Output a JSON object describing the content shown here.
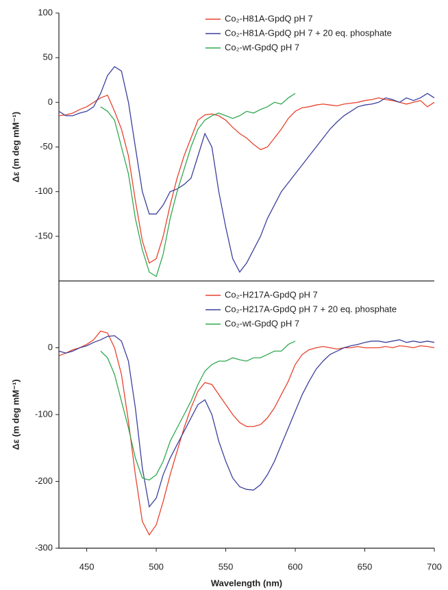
{
  "chart_data": [
    {
      "type": "line",
      "ylabel": "Δε (m deg mM⁻¹)",
      "legend": "top-right",
      "x": [
        430,
        435,
        440,
        445,
        450,
        455,
        460,
        465,
        470,
        475,
        480,
        485,
        490,
        495,
        500,
        505,
        510,
        515,
        520,
        525,
        530,
        535,
        540,
        545,
        550,
        555,
        560,
        565,
        570,
        575,
        580,
        585,
        590,
        595,
        600,
        605,
        610,
        615,
        620,
        625,
        630,
        635,
        640,
        645,
        650,
        655,
        660,
        665,
        670,
        675,
        680,
        685,
        690,
        695,
        700
      ],
      "xlim": [
        430,
        700
      ],
      "ylim": [
        -200,
        100
      ],
      "yticks": [
        -150,
        -100,
        -50,
        0,
        50,
        100
      ],
      "series": [
        {
          "name": "Co₂-H81A-GpdQ pH 7",
          "color": "#e8412c",
          "values": [
            -15,
            -14,
            -12,
            -8,
            -5,
            0,
            5,
            8,
            -10,
            -30,
            -60,
            -110,
            -155,
            -180,
            -175,
            -150,
            -115,
            -85,
            -60,
            -40,
            -20,
            -14,
            -13,
            -15,
            -20,
            -28,
            -35,
            -40,
            -47,
            -53,
            -50,
            -40,
            -30,
            -18,
            -10,
            -6,
            -5,
            -3,
            -2,
            -3,
            -4,
            -2,
            -1,
            0,
            2,
            3,
            5,
            3,
            2,
            0,
            -2,
            0,
            2,
            -5,
            0
          ]
        },
        {
          "name": "Co₂-H81A-GpdQ pH 7 + 20 eq. phosphate",
          "color": "#3b3f9c",
          "values": [
            -10,
            -15,
            -15,
            -12,
            -10,
            -5,
            10,
            30,
            40,
            35,
            0,
            -50,
            -100,
            -125,
            -125,
            -115,
            -100,
            -97,
            -92,
            -85,
            -60,
            -35,
            -50,
            -100,
            -140,
            -175,
            -190,
            -180,
            -165,
            -150,
            -130,
            -115,
            -100,
            -90,
            -80,
            -70,
            -60,
            -50,
            -40,
            -30,
            -22,
            -15,
            -10,
            -5,
            -3,
            -2,
            0,
            5,
            3,
            0,
            5,
            2,
            5,
            10,
            5
          ]
        },
        {
          "name": "Co₂-wt-GpdQ pH 7",
          "color": "#2fa84f",
          "values": [
            null,
            null,
            null,
            null,
            null,
            null,
            -5,
            -10,
            -20,
            -50,
            -80,
            -130,
            -165,
            -190,
            -195,
            -170,
            -130,
            -100,
            -75,
            -50,
            -30,
            -20,
            -15,
            -12,
            -15,
            -18,
            -15,
            -10,
            -12,
            -8,
            -5,
            0,
            -2,
            5,
            10,
            null,
            null,
            null,
            null,
            null,
            null,
            null,
            null,
            null,
            null,
            null,
            null,
            null,
            null,
            null,
            null,
            null,
            null,
            null,
            null
          ]
        }
      ]
    },
    {
      "type": "line",
      "xlabel": "Wavelength (nm)",
      "ylabel": "Δε (m deg mM⁻¹)",
      "legend": "top-right",
      "x": [
        430,
        435,
        440,
        445,
        450,
        455,
        460,
        465,
        470,
        475,
        480,
        485,
        490,
        495,
        500,
        505,
        510,
        515,
        520,
        525,
        530,
        535,
        540,
        545,
        550,
        555,
        560,
        565,
        570,
        575,
        580,
        585,
        590,
        595,
        600,
        605,
        610,
        615,
        620,
        625,
        630,
        635,
        640,
        645,
        650,
        655,
        660,
        665,
        670,
        675,
        680,
        685,
        690,
        695,
        700
      ],
      "xlim": [
        430,
        700
      ],
      "xticks": [
        450,
        500,
        550,
        600,
        650,
        700
      ],
      "ylim": [
        -300,
        100
      ],
      "yticks": [
        -300,
        -200,
        -100,
        0
      ],
      "series": [
        {
          "name": "Co₂-H217A-GpdQ pH 7",
          "color": "#e8412c",
          "values": [
            -12,
            -8,
            -3,
            0,
            5,
            12,
            25,
            22,
            0,
            -40,
            -110,
            -190,
            -260,
            -280,
            -265,
            -230,
            -190,
            -155,
            -120,
            -90,
            -65,
            -52,
            -55,
            -70,
            -85,
            -100,
            -112,
            -118,
            -118,
            -115,
            -105,
            -90,
            -70,
            -50,
            -25,
            -10,
            -3,
            0,
            2,
            0,
            -2,
            0,
            0,
            2,
            0,
            0,
            0,
            2,
            0,
            3,
            2,
            0,
            3,
            2,
            0
          ]
        },
        {
          "name": "Co₂-H217A-GpdQ pH 7 + 20 eq. phosphate",
          "color": "#3b3f9c",
          "values": [
            -5,
            -8,
            -5,
            0,
            3,
            8,
            12,
            17,
            18,
            10,
            -20,
            -90,
            -180,
            -238,
            -225,
            -190,
            -165,
            -145,
            -125,
            -105,
            -85,
            -78,
            -100,
            -140,
            -170,
            -195,
            -208,
            -212,
            -213,
            -205,
            -190,
            -170,
            -145,
            -120,
            -95,
            -70,
            -50,
            -32,
            -20,
            -10,
            -5,
            0,
            3,
            5,
            8,
            10,
            10,
            8,
            10,
            12,
            8,
            10,
            8,
            10,
            8
          ]
        },
        {
          "name": "Co₂-wt-GpdQ pH 7",
          "color": "#2fa84f",
          "values": [
            null,
            null,
            null,
            null,
            null,
            null,
            -5,
            -15,
            -40,
            -80,
            -120,
            -165,
            -195,
            -198,
            -190,
            -170,
            -140,
            -120,
            -100,
            -80,
            -55,
            -35,
            -25,
            -20,
            -20,
            -15,
            -18,
            -20,
            -15,
            -15,
            -10,
            -5,
            -5,
            5,
            10,
            null,
            null,
            null,
            null,
            null,
            null,
            null,
            null,
            null,
            null,
            null,
            null,
            null,
            null,
            null,
            null,
            null,
            null,
            null,
            null
          ]
        }
      ]
    }
  ]
}
